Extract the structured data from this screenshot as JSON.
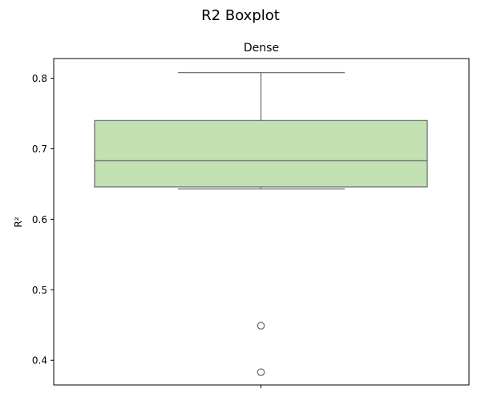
{
  "figure_title": "R2 Boxplot",
  "chart_data": {
    "type": "box",
    "title": "Dense",
    "xlabel": "",
    "ylabel": "R²",
    "ylim": [
      0.365,
      0.828
    ],
    "yticks": [
      0.4,
      0.5,
      0.6,
      0.7,
      0.8
    ],
    "ytick_labels": [
      "0.4",
      "0.5",
      "0.6",
      "0.7",
      "0.8"
    ],
    "grid": false,
    "legend": "none",
    "box": {
      "whisker_low": 0.643,
      "q1": 0.646,
      "median": 0.683,
      "q3": 0.74,
      "whisker_high": 0.808,
      "outliers": [
        0.449,
        0.383
      ]
    },
    "colors": {
      "box_fill": "#c3e0b2",
      "box_edge": "#707070",
      "axes": "#000000"
    }
  }
}
